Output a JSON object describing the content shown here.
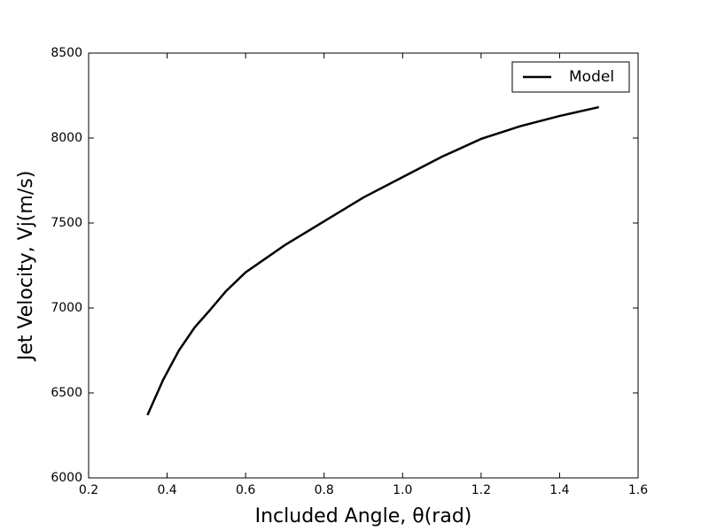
{
  "chart_data": {
    "type": "line",
    "x_label": "Included Angle, θ(rad)",
    "y_label": "Jet Velocity, Vj(m/s)",
    "x": [
      0.35,
      0.39,
      0.43,
      0.47,
      0.51,
      0.55,
      0.6,
      0.7,
      0.8,
      0.9,
      1.0,
      1.1,
      1.2,
      1.3,
      1.4,
      1.5
    ],
    "series": [
      {
        "name": "Model",
        "color": "#000000",
        "values": [
          6370,
          6578,
          6750,
          6885,
          6990,
          7099,
          7210,
          7370,
          7510,
          7650,
          7770,
          7890,
          7995,
          8070,
          8130,
          8182
        ]
      }
    ],
    "xlim": [
      0.2,
      1.6
    ],
    "xticks": [
      0.2,
      0.4,
      0.6,
      0.8,
      {
        "value": 1,
        "label": "1.0"
      },
      1.2,
      1.4,
      1.6
    ],
    "ylim": [
      6000,
      8500
    ],
    "yticks": [
      6000,
      6500,
      7000,
      7500,
      8000,
      8500
    ],
    "legend": "upper right"
  }
}
